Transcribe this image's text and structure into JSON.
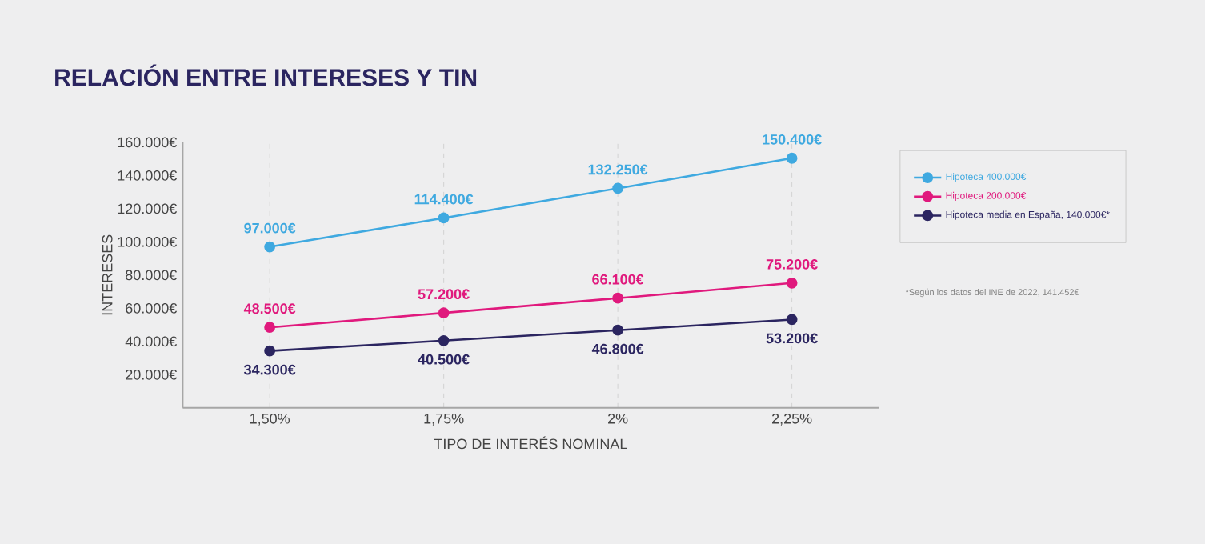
{
  "chart_data": {
    "type": "line",
    "title": "RELACIÓN ENTRE INTERESES Y TIN",
    "xlabel": "TIPO DE INTERÉS NOMINAL",
    "ylabel": "INTERESES",
    "categories": [
      "1,50%",
      "1,75%",
      "2%",
      "2,25%"
    ],
    "series": [
      {
        "name": "Hipoteca 400.000€",
        "color": "#3fa9e0",
        "values": [
          97000,
          114400,
          132250,
          150400
        ],
        "value_labels": [
          "97.000€",
          "114.400€",
          "132.250€",
          "150.400€"
        ]
      },
      {
        "name": "Hipoteca 200.000€",
        "color": "#e0197d",
        "values": [
          48500,
          57200,
          66100,
          75200
        ],
        "value_labels": [
          "48.500€",
          "57.200€",
          "66.100€",
          "75.200€"
        ]
      },
      {
        "name": "Hipoteca media en España, 140.000€*",
        "color": "#2b2560",
        "values": [
          34300,
          40500,
          46800,
          53200
        ],
        "value_labels": [
          "34.300€",
          "40.500€",
          "46.800€",
          "53.200€"
        ]
      }
    ],
    "ylim": [
      0,
      160000
    ],
    "yticks": [
      {
        "value": 20000,
        "label": "20.000€"
      },
      {
        "value": 40000,
        "label": "40.000€"
      },
      {
        "value": 60000,
        "label": "60.000€"
      },
      {
        "value": 80000,
        "label": "80.000€"
      },
      {
        "value": 100000,
        "label": "100.000€"
      },
      {
        "value": 120000,
        "label": "120.000€"
      },
      {
        "value": 140000,
        "label": "140.000€"
      },
      {
        "value": 160000,
        "label": "160.000€"
      }
    ],
    "grid": "x",
    "legend": "right",
    "marker": "circle",
    "line_style": "solid",
    "annotations": [
      "*Según los datos del INE de 2022, 141.452€"
    ]
  }
}
